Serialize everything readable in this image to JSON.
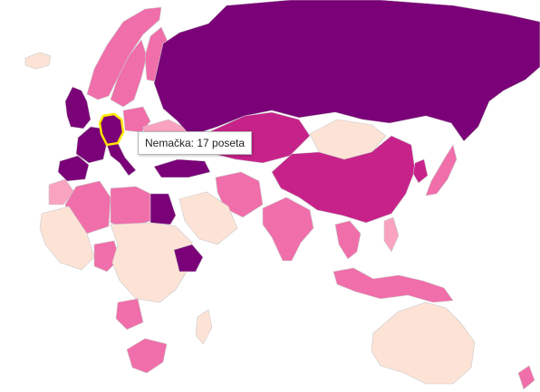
{
  "map": {
    "tooltip_text": "Nemačka: 17 poseta",
    "colors": {
      "water": "#ffffff",
      "none": "#fde3d6",
      "low": "#f9a3c1",
      "mid": "#f06eaa",
      "high": "#c7228a",
      "max": "#7a0177",
      "highlight_stroke": "#ffe800"
    },
    "countries": [
      {
        "id": "russia",
        "level": "max"
      },
      {
        "id": "mongolia",
        "level": "none"
      },
      {
        "id": "china",
        "level": "high"
      },
      {
        "id": "kazakhstan",
        "level": "high"
      },
      {
        "id": "india",
        "level": "mid"
      },
      {
        "id": "japan",
        "level": "mid"
      },
      {
        "id": "korea",
        "level": "high"
      },
      {
        "id": "iran",
        "level": "mid"
      },
      {
        "id": "saudi-arabia",
        "level": "none"
      },
      {
        "id": "turkey",
        "level": "max"
      },
      {
        "id": "egypt",
        "level": "max"
      },
      {
        "id": "libya",
        "level": "mid"
      },
      {
        "id": "algeria",
        "level": "mid"
      },
      {
        "id": "morocco",
        "level": "low"
      },
      {
        "id": "west-africa",
        "level": "none"
      },
      {
        "id": "nigeria",
        "level": "mid"
      },
      {
        "id": "ethiopia",
        "level": "max"
      },
      {
        "id": "central-africa",
        "level": "none"
      },
      {
        "id": "angola",
        "level": "mid"
      },
      {
        "id": "south-africa",
        "level": "mid"
      },
      {
        "id": "madagascar",
        "level": "none"
      },
      {
        "id": "norway",
        "level": "mid"
      },
      {
        "id": "sweden",
        "level": "mid"
      },
      {
        "id": "finland",
        "level": "mid"
      },
      {
        "id": "uk",
        "level": "max"
      },
      {
        "id": "france",
        "level": "max"
      },
      {
        "id": "spain",
        "level": "max"
      },
      {
        "id": "italy",
        "level": "max"
      },
      {
        "id": "germany",
        "level": "max"
      },
      {
        "id": "poland",
        "level": "mid"
      },
      {
        "id": "ukraine",
        "level": "low"
      },
      {
        "id": "iceland",
        "level": "none"
      },
      {
        "id": "thailand",
        "level": "mid"
      },
      {
        "id": "indonesia",
        "level": "mid"
      },
      {
        "id": "philippines",
        "level": "low"
      },
      {
        "id": "australia",
        "level": "none"
      },
      {
        "id": "new-zealand",
        "level": "mid"
      }
    ]
  }
}
